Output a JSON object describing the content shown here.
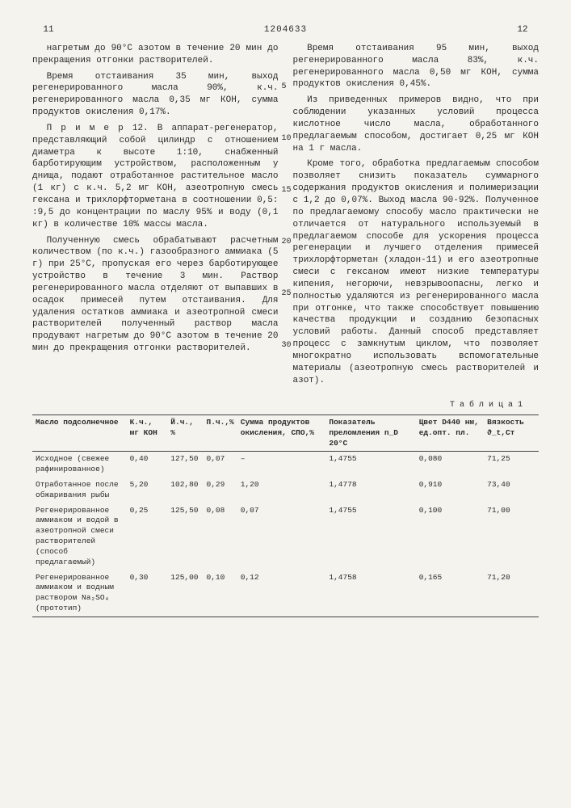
{
  "header": {
    "page_left": "11",
    "docnum": "1204633",
    "page_right": "12"
  },
  "linenums": [
    "5",
    "10",
    "15",
    "20",
    "25",
    "30"
  ],
  "left": {
    "p1": "нагретым до 90°С азотом в течение 20 мин до прекращения отгонки растворителей.",
    "p2": "Время отстаивания 35 мин, выход регенерированного масла 90%, к.ч. регенерированного масла 0,35 мг КОН, сумма продуктов окисления 0,17%.",
    "p3": "П р и м е р  12. В аппарат-регенератор, представляющий собой цилиндр с отношением диаметра к высоте 1:10, снабженный барботирующим устройством, расположенным у днища, подают отработанное растительное масло (1 кг) с к.ч. 5,2 мг КОН, азеотропную смесь гексана и трихлорфторметана в соотношении 0,5: :9,5 до концентрации по маслу 95% и воду (0,1 кг) в количестве 10% массы масла.",
    "p4": "Полученную смесь обрабатывают расчетным количеством (по к.ч.) газообразного аммиака (5 г) при 25°С, пропуская его через барботирующее устройство в течение 3 мин. Раствор регенерированного масла отделяют от выпавших в осадок примесей путем отстаивания. Для удаления остатков аммиака и азеотропной смеси растворителей полученный раствор масла продувают нагретым до 90°С азотом в течение 20 мин до прекращения отгонки растворителей."
  },
  "right": {
    "p1": "Время отстаивания 95 мин, выход регенерированного масла 83%, к.ч. регенерированного масла 0,50 мг КОН, сумма продуктов окисления 0,45%.",
    "p2": "Из приведенных примеров видно, что при соблюдении указанных условий процесса кислотное число масла, обработанного предлагаемым способом, достигает 0,25 мг КОН на 1 г масла.",
    "p3": "Кроме того, обработка предлагаемым способом позволяет снизить показатель суммарного содержания продуктов окисления и полимеризации с 1,2 до 0,07%. Выход масла 90-92%. Полученное по предлагаемому способу масло практически не отличается от натурального используемый в предлагаемом способе для ускорения процесса регенерации и лучшего отделения примесей трихлорфторметан (хладон-11) и его азеотропные смеси с гексаном имеют низкие температуры кипения, негорючи, невзрывоопасны, легко и полностью удаляются из регенерированного масла при отгонке, что также способствует повышению качества продукции и созданию безопасных условий работы. Данный способ представляет процесс с замкнутым циклом, что позволяет многократно использовать вспомогательные материалы (азеотропную смесь растворителей и азот)."
  },
  "table": {
    "title": "Т а б л и ц а  1",
    "columns": [
      "Масло подсолнечное",
      "К.ч., мг КОН",
      "Й.ч., %",
      "П.ч.,%",
      "Сумма продуктов окисления, СПО,%",
      "Показатель преломления n_D 20°С",
      "Цвет D440 нм, ед.опт. пл.",
      "Вязкость ϑ_t,Ст"
    ],
    "rows": [
      [
        "Исходное (свежее рафинированное)",
        "0,40",
        "127,50",
        "0,07",
        "–",
        "1,4755",
        "0,080",
        "71,25"
      ],
      [
        "Отработанное после обжаривания рыбы",
        "5,20",
        "102,80",
        "0,29",
        "1,20",
        "1,4778",
        "0,910",
        "73,40"
      ],
      [
        "Регенерированное аммиаком и водой в азеотропной смеси растворителей (способ предлагаемый)",
        "0,25",
        "125,50",
        "0,08",
        "0,07",
        "1,4755",
        "0,100",
        "71,00"
      ],
      [
        "Регенерированное аммиаком и водным раствором Na₂SO₄ (прототип)",
        "0,30",
        "125,00",
        "0,10",
        "0,12",
        "1,4758",
        "0,165",
        "71,20"
      ]
    ]
  }
}
